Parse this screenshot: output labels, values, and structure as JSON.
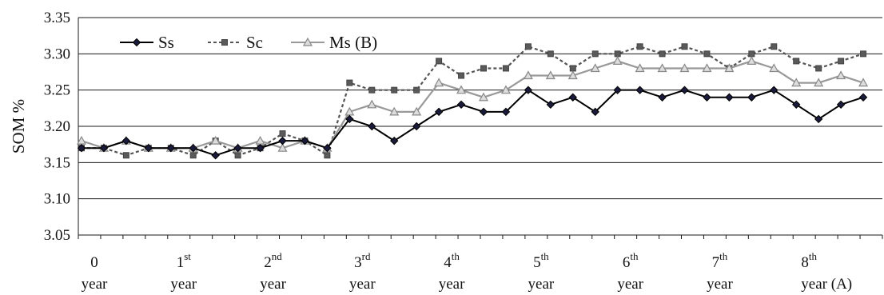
{
  "chart_data": {
    "type": "line",
    "ylabel": "SOM %",
    "xlabel": "",
    "ylim": [
      3.05,
      3.35
    ],
    "yticks": [
      "3.05",
      "3.10",
      "3.15",
      "3.20",
      "3.25",
      "3.30",
      "3.35"
    ],
    "grid": "horizontal",
    "legend_position": "top-left",
    "x_axis_labels": [
      {
        "main": "0",
        "sup": "",
        "sub": "year"
      },
      {
        "main": "1",
        "sup": "st",
        "sub": "year"
      },
      {
        "main": "2",
        "sup": "nd",
        "sub": "year"
      },
      {
        "main": "3",
        "sup": "rd",
        "sub": "year"
      },
      {
        "main": "4",
        "sup": "th",
        "sub": "year"
      },
      {
        "main": "5",
        "sup": "th",
        "sub": "year"
      },
      {
        "main": "6",
        "sup": "th",
        "sub": "year"
      },
      {
        "main": "7",
        "sup": "th",
        "sub": "year"
      },
      {
        "main": "8",
        "sup": "th",
        "sub": "year (A)"
      }
    ],
    "series": [
      {
        "name": "Ss",
        "color": "#000000",
        "dash": "solid",
        "marker": "diamond",
        "values": [
          3.17,
          3.17,
          3.18,
          3.17,
          3.17,
          3.17,
          3.16,
          3.17,
          3.17,
          3.18,
          3.18,
          3.17,
          3.21,
          3.2,
          3.18,
          3.2,
          3.22,
          3.23,
          3.22,
          3.22,
          3.25,
          3.23,
          3.24,
          3.22,
          3.25,
          3.25,
          3.24,
          3.25,
          3.24,
          3.24,
          3.24,
          3.25,
          3.23,
          3.21,
          3.23,
          3.24
        ]
      },
      {
        "name": "Sc",
        "color": "#555555",
        "dash": "dashed",
        "marker": "square",
        "values": [
          3.17,
          3.17,
          3.16,
          3.17,
          3.17,
          3.16,
          3.18,
          3.16,
          3.17,
          3.19,
          3.18,
          3.16,
          3.26,
          3.25,
          3.25,
          3.25,
          3.29,
          3.27,
          3.28,
          3.28,
          3.31,
          3.3,
          3.28,
          3.3,
          3.3,
          3.31,
          3.3,
          3.31,
          3.3,
          3.28,
          3.3,
          3.31,
          3.29,
          3.28,
          3.29,
          3.3
        ]
      },
      {
        "name": "Ms (B)",
        "color": "#999999",
        "dash": "solid",
        "marker": "triangle",
        "values": [
          3.18,
          3.17,
          3.18,
          3.17,
          3.17,
          3.17,
          3.18,
          3.17,
          3.18,
          3.17,
          3.18,
          3.17,
          3.22,
          3.23,
          3.22,
          3.22,
          3.26,
          3.25,
          3.24,
          3.25,
          3.27,
          3.27,
          3.27,
          3.28,
          3.29,
          3.28,
          3.28,
          3.28,
          3.28,
          3.28,
          3.29,
          3.28,
          3.26,
          3.26,
          3.27,
          3.26
        ]
      }
    ]
  }
}
